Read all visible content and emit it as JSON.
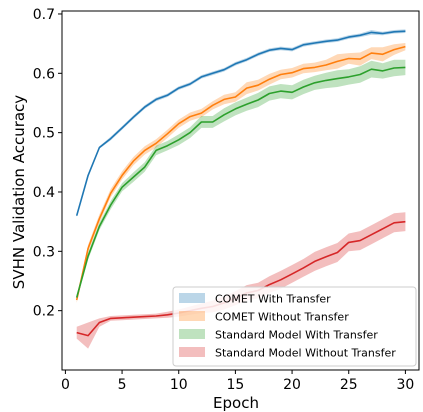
{
  "chart_data": {
    "type": "line",
    "title": "",
    "xlabel": "Epoch",
    "ylabel": "SVHN Validation Accuracy",
    "xlim": [
      -0.3,
      31.2
    ],
    "ylim": [
      0.1,
      0.705
    ],
    "xticks": [
      0,
      5,
      10,
      15,
      20,
      25,
      30
    ],
    "yticks": [
      0.2,
      0.3,
      0.4,
      0.5,
      0.6,
      0.7
    ],
    "xtick_labels": [
      "0",
      "5",
      "10",
      "15",
      "20",
      "25",
      "30"
    ],
    "ytick_labels": [
      "0.2",
      "0.3",
      "0.4",
      "0.5",
      "0.6",
      "0.7"
    ],
    "grid": false,
    "legend_position": "bottom-right",
    "x": [
      1,
      2,
      3,
      4,
      5,
      6,
      7,
      8,
      9,
      10,
      11,
      12,
      13,
      14,
      15,
      16,
      17,
      18,
      19,
      20,
      21,
      22,
      23,
      24,
      25,
      26,
      27,
      28,
      29,
      30
    ],
    "series": [
      {
        "name": "COMET With Transfer",
        "color": "#1f77b4",
        "values": [
          0.36,
          0.428,
          0.475,
          0.49,
          0.508,
          0.526,
          0.543,
          0.556,
          0.563,
          0.575,
          0.582,
          0.594,
          0.6,
          0.606,
          0.616,
          0.623,
          0.632,
          0.639,
          0.642,
          0.64,
          0.648,
          0.651,
          0.654,
          0.656,
          0.661,
          0.664,
          0.669,
          0.667,
          0.67,
          0.671
        ],
        "band": [
          0.002,
          0.002,
          0.002,
          0.003,
          0.003,
          0.003,
          0.003,
          0.003,
          0.003,
          0.003,
          0.003,
          0.003,
          0.003,
          0.003,
          0.003,
          0.003,
          0.003,
          0.003,
          0.003,
          0.003,
          0.003,
          0.003,
          0.003,
          0.003,
          0.003,
          0.003,
          0.004,
          0.003,
          0.003,
          0.003
        ]
      },
      {
        "name": "COMET Without Transfer",
        "color": "#ff7f0e",
        "values": [
          0.218,
          0.305,
          0.355,
          0.398,
          0.428,
          0.452,
          0.47,
          0.482,
          0.498,
          0.515,
          0.527,
          0.533,
          0.546,
          0.556,
          0.56,
          0.575,
          0.58,
          0.59,
          0.598,
          0.601,
          0.608,
          0.61,
          0.614,
          0.62,
          0.625,
          0.624,
          0.634,
          0.632,
          0.64,
          0.645
        ],
        "band": [
          0.005,
          0.006,
          0.007,
          0.007,
          0.007,
          0.007,
          0.007,
          0.007,
          0.007,
          0.007,
          0.007,
          0.007,
          0.007,
          0.008,
          0.008,
          0.01,
          0.009,
          0.009,
          0.008,
          0.008,
          0.008,
          0.008,
          0.009,
          0.012,
          0.009,
          0.011,
          0.01,
          0.012,
          0.009,
          0.006
        ]
      },
      {
        "name": "Standard Model With Transfer",
        "color": "#2ca02c",
        "values": [
          0.222,
          0.292,
          0.342,
          0.378,
          0.408,
          0.425,
          0.442,
          0.47,
          0.478,
          0.488,
          0.5,
          0.518,
          0.518,
          0.53,
          0.54,
          0.548,
          0.555,
          0.566,
          0.57,
          0.568,
          0.577,
          0.584,
          0.588,
          0.591,
          0.594,
          0.598,
          0.607,
          0.604,
          0.609,
          0.61
        ],
        "band": [
          0.005,
          0.006,
          0.006,
          0.007,
          0.007,
          0.008,
          0.008,
          0.008,
          0.008,
          0.009,
          0.009,
          0.01,
          0.01,
          0.011,
          0.011,
          0.011,
          0.012,
          0.012,
          0.012,
          0.012,
          0.012,
          0.012,
          0.013,
          0.014,
          0.013,
          0.014,
          0.014,
          0.013,
          0.014,
          0.013
        ]
      },
      {
        "name": "Standard Model Without Transfer",
        "color": "#d62728",
        "values": [
          0.163,
          0.158,
          0.18,
          0.187,
          0.188,
          0.189,
          0.19,
          0.191,
          0.193,
          0.196,
          0.2,
          0.204,
          0.207,
          0.213,
          0.221,
          0.23,
          0.234,
          0.244,
          0.252,
          0.262,
          0.272,
          0.283,
          0.291,
          0.298,
          0.315,
          0.318,
          0.328,
          0.338,
          0.348,
          0.35
        ],
        "band": [
          0.01,
          0.022,
          0.007,
          0.004,
          0.004,
          0.004,
          0.004,
          0.004,
          0.005,
          0.006,
          0.007,
          0.008,
          0.01,
          0.011,
          0.012,
          0.013,
          0.013,
          0.014,
          0.015,
          0.015,
          0.015,
          0.016,
          0.016,
          0.016,
          0.015,
          0.016,
          0.016,
          0.016,
          0.016,
          0.016
        ]
      }
    ]
  }
}
